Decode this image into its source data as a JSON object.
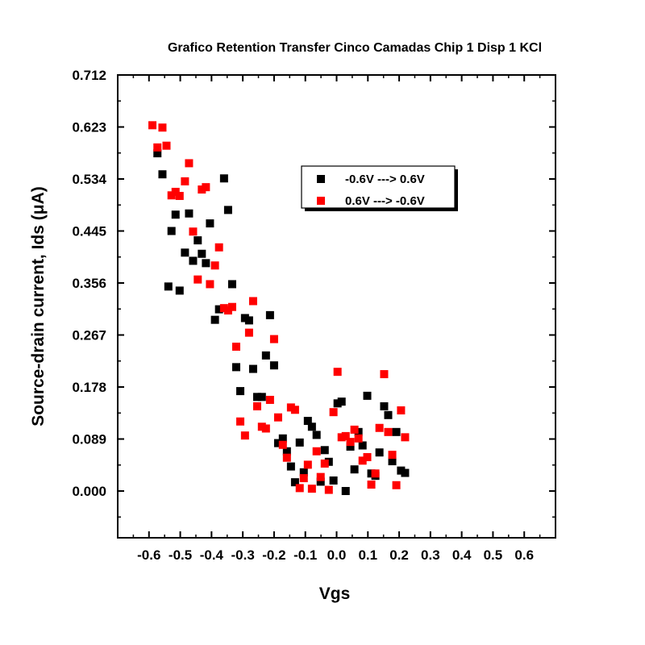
{
  "chart_data": {
    "type": "scatter",
    "title": "Grafico Retention Transfer Cinco Camadas Chip 1 Disp 1 KCl",
    "xlabel": "Vgs",
    "ylabel": "Source-drain current, Ids (μA)",
    "xlim": [
      -0.7,
      0.7
    ],
    "ylim": [
      -0.08,
      0.712
    ],
    "x_ticks": [
      -0.6,
      -0.5,
      -0.4,
      -0.3,
      -0.2,
      -0.1,
      0.0,
      0.1,
      0.2,
      0.3,
      0.4,
      0.5,
      0.6
    ],
    "x_tick_labels": [
      "-0.6",
      "-0.5",
      "-0.4",
      "-0.3",
      "-0.2",
      "-0.1",
      "0.0",
      "0.1",
      "0.2",
      "0.3",
      "0.4",
      "0.5",
      "0.6"
    ],
    "y_ticks": [
      0.0,
      0.089,
      0.178,
      0.267,
      0.356,
      0.445,
      0.534,
      0.623,
      0.712
    ],
    "y_tick_labels": [
      "0.000",
      "0.089",
      "0.178",
      "0.267",
      "0.356",
      "0.445",
      "0.534",
      "0.623",
      "0.712"
    ],
    "grid": false,
    "legend_position": "top-center",
    "series": [
      {
        "name": "-0.6V ---> 0.6V",
        "color": "#000000",
        "marker": "square",
        "points": [
          [
            -0.573,
            0.578
          ],
          [
            -0.557,
            0.542
          ],
          [
            -0.538,
            0.35
          ],
          [
            -0.528,
            0.445
          ],
          [
            -0.515,
            0.473
          ],
          [
            -0.502,
            0.343
          ],
          [
            -0.485,
            0.408
          ],
          [
            -0.472,
            0.475
          ],
          [
            -0.459,
            0.394
          ],
          [
            -0.444,
            0.429
          ],
          [
            -0.431,
            0.406
          ],
          [
            -0.418,
            0.39
          ],
          [
            -0.405,
            0.458
          ],
          [
            -0.389,
            0.293
          ],
          [
            -0.376,
            0.311
          ],
          [
            -0.36,
            0.535
          ],
          [
            -0.347,
            0.481
          ],
          [
            -0.334,
            0.354
          ],
          [
            -0.321,
            0.212
          ],
          [
            -0.308,
            0.171
          ],
          [
            -0.293,
            0.296
          ],
          [
            -0.28,
            0.292
          ],
          [
            -0.267,
            0.209
          ],
          [
            -0.254,
            0.161
          ],
          [
            -0.239,
            0.161
          ],
          [
            -0.226,
            0.232
          ],
          [
            -0.213,
            0.301
          ],
          [
            -0.2,
            0.215
          ],
          [
            -0.187,
            0.082
          ],
          [
            -0.172,
            0.09
          ],
          [
            -0.159,
            0.068
          ],
          [
            -0.146,
            0.042
          ],
          [
            -0.133,
            0.015
          ],
          [
            -0.118,
            0.083
          ],
          [
            -0.105,
            0.032
          ],
          [
            -0.092,
            0.12
          ],
          [
            -0.079,
            0.11
          ],
          [
            -0.064,
            0.096
          ],
          [
            -0.051,
            0.016
          ],
          [
            -0.038,
            0.07
          ],
          [
            -0.025,
            0.05
          ],
          [
            -0.01,
            0.018
          ],
          [
            0.003,
            0.15
          ],
          [
            0.016,
            0.153
          ],
          [
            0.029,
            0.0
          ],
          [
            0.044,
            0.076
          ],
          [
            0.057,
            0.037
          ],
          [
            0.07,
            0.101
          ],
          [
            0.083,
            0.078
          ],
          [
            0.098,
            0.163
          ],
          [
            0.111,
            0.03
          ],
          [
            0.124,
            0.026
          ],
          [
            0.137,
            0.066
          ],
          [
            0.152,
            0.145
          ],
          [
            0.165,
            0.13
          ],
          [
            0.178,
            0.051
          ],
          [
            0.191,
            0.101
          ],
          [
            0.206,
            0.035
          ],
          [
            0.219,
            0.031
          ]
        ]
      },
      {
        "name": "0.6V ---> -0.6V",
        "color": "#ff0000",
        "marker": "square",
        "points": [
          [
            -0.589,
            0.626
          ],
          [
            -0.573,
            0.588
          ],
          [
            -0.557,
            0.622
          ],
          [
            -0.544,
            0.591
          ],
          [
            -0.528,
            0.506
          ],
          [
            -0.515,
            0.512
          ],
          [
            -0.502,
            0.505
          ],
          [
            -0.485,
            0.53
          ],
          [
            -0.472,
            0.561
          ],
          [
            -0.459,
            0.444
          ],
          [
            -0.444,
            0.362
          ],
          [
            -0.431,
            0.516
          ],
          [
            -0.418,
            0.52
          ],
          [
            -0.405,
            0.354
          ],
          [
            -0.389,
            0.386
          ],
          [
            -0.376,
            0.417
          ],
          [
            -0.36,
            0.313
          ],
          [
            -0.347,
            0.309
          ],
          [
            -0.334,
            0.315
          ],
          [
            -0.321,
            0.247
          ],
          [
            -0.308,
            0.119
          ],
          [
            -0.293,
            0.095
          ],
          [
            -0.28,
            0.271
          ],
          [
            -0.267,
            0.325
          ],
          [
            -0.254,
            0.145
          ],
          [
            -0.239,
            0.11
          ],
          [
            -0.226,
            0.107
          ],
          [
            -0.213,
            0.156
          ],
          [
            -0.2,
            0.26
          ],
          [
            -0.187,
            0.126
          ],
          [
            -0.172,
            0.079
          ],
          [
            -0.159,
            0.057
          ],
          [
            -0.146,
            0.143
          ],
          [
            -0.133,
            0.139
          ],
          [
            -0.118,
            0.005
          ],
          [
            -0.105,
            0.022
          ],
          [
            -0.092,
            0.045
          ],
          [
            -0.079,
            0.004
          ],
          [
            -0.064,
            0.068
          ],
          [
            -0.051,
            0.024
          ],
          [
            -0.038,
            0.047
          ],
          [
            -0.025,
            0.002
          ],
          [
            -0.01,
            0.135
          ],
          [
            0.003,
            0.204
          ],
          [
            0.016,
            0.092
          ],
          [
            0.029,
            0.094
          ],
          [
            0.044,
            0.084
          ],
          [
            0.057,
            0.105
          ],
          [
            0.07,
            0.09
          ],
          [
            0.083,
            0.052
          ],
          [
            0.098,
            0.058
          ],
          [
            0.111,
            0.011
          ],
          [
            0.124,
            0.03
          ],
          [
            0.137,
            0.108
          ],
          [
            0.152,
            0.2
          ],
          [
            0.165,
            0.101
          ],
          [
            0.178,
            0.062
          ],
          [
            0.191,
            0.01
          ],
          [
            0.206,
            0.138
          ],
          [
            0.219,
            0.092
          ]
        ]
      }
    ]
  }
}
